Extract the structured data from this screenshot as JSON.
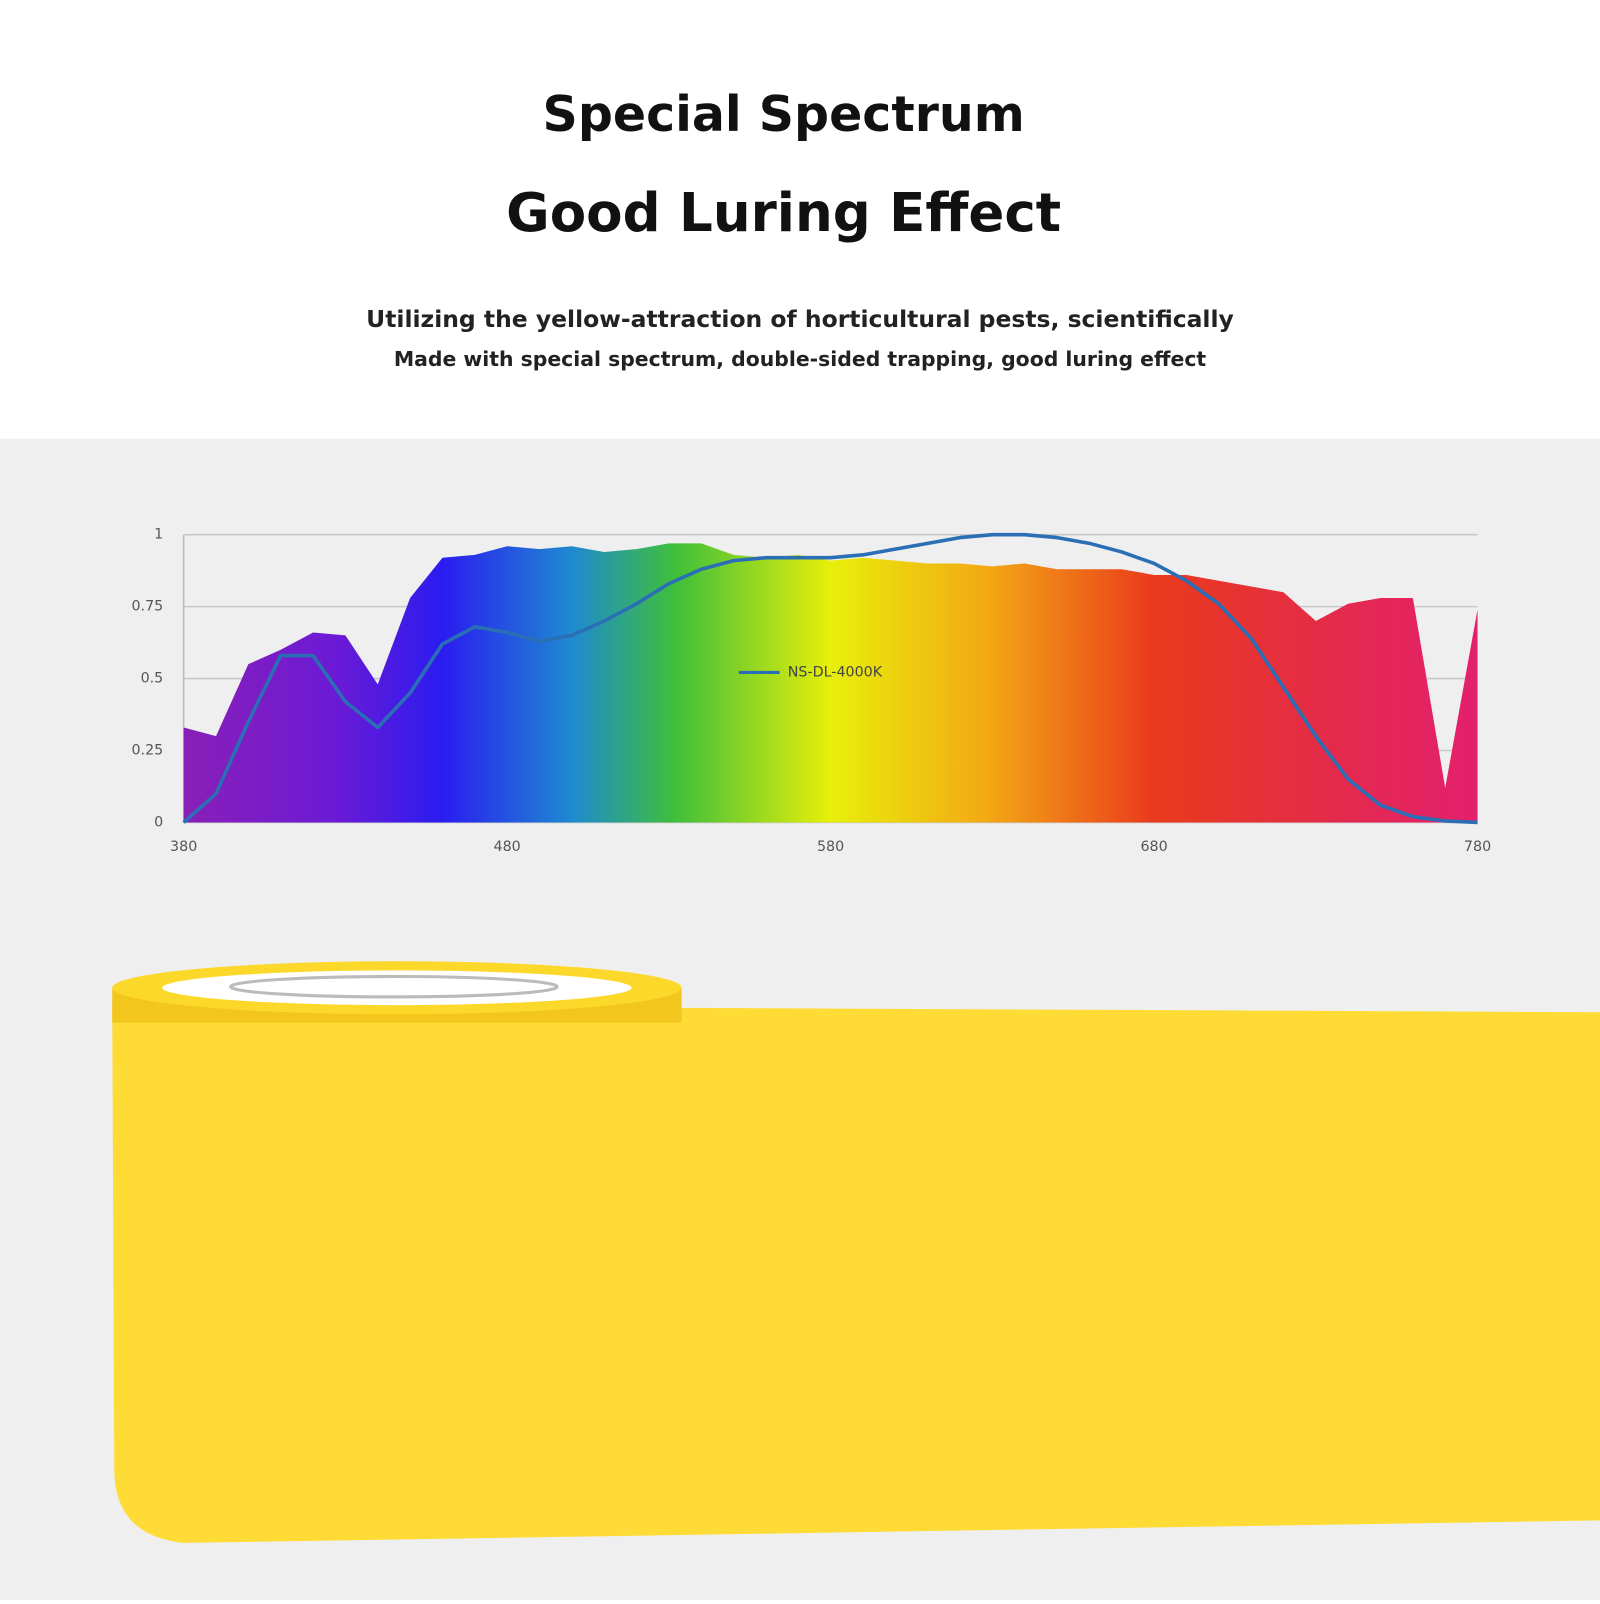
{
  "header": {
    "title": "Special Spectrum",
    "subtitle": "Good Luring Effect",
    "lines": [
      "Utilizing the yellow-attraction of horticultural pests, scientifically",
      "Made with special spectrum, double-sided trapping, good luring effect"
    ]
  },
  "chart_data": {
    "type": "line",
    "x": [
      380,
      390,
      400,
      410,
      420,
      430,
      440,
      450,
      460,
      470,
      480,
      490,
      500,
      510,
      520,
      530,
      540,
      550,
      560,
      570,
      580,
      590,
      600,
      610,
      620,
      630,
      640,
      650,
      660,
      670,
      680,
      690,
      700,
      710,
      720,
      730,
      740,
      750,
      760,
      770,
      780
    ],
    "series": [
      {
        "type": "area",
        "values": [
          0.33,
          0.3,
          0.55,
          0.6,
          0.66,
          0.65,
          0.48,
          0.78,
          0.92,
          0.93,
          0.96,
          0.95,
          0.96,
          0.94,
          0.95,
          0.97,
          0.97,
          0.93,
          0.92,
          0.93,
          0.91,
          0.92,
          0.91,
          0.9,
          0.9,
          0.89,
          0.9,
          0.88,
          0.88,
          0.88,
          0.86,
          0.86,
          0.84,
          0.82,
          0.8,
          0.7,
          0.76,
          0.78,
          0.78,
          0.12,
          0.74
        ]
      },
      {
        "type": "line",
        "name": "NS-DL-4000K",
        "color": "#2a6fb5",
        "values": [
          0,
          0.1,
          0.35,
          0.58,
          0.58,
          0.42,
          0.33,
          0.45,
          0.62,
          0.68,
          0.66,
          0.63,
          0.65,
          0.7,
          0.76,
          0.83,
          0.88,
          0.91,
          0.92,
          0.92,
          0.92,
          0.93,
          0.95,
          0.97,
          0.99,
          1,
          1,
          0.99,
          0.97,
          0.94,
          0.9,
          0.84,
          0.76,
          0.64,
          0.47,
          0.3,
          0.15,
          0.06,
          0.02,
          0.005,
          0
        ]
      }
    ],
    "xlim": [
      380,
      780
    ],
    "xticks": [
      380,
      480,
      580,
      680,
      780
    ],
    "ylim": [
      0,
      1
    ],
    "yticks": [
      0,
      0.25,
      0.5,
      0.75,
      1
    ],
    "grid": true,
    "legend": "center"
  }
}
